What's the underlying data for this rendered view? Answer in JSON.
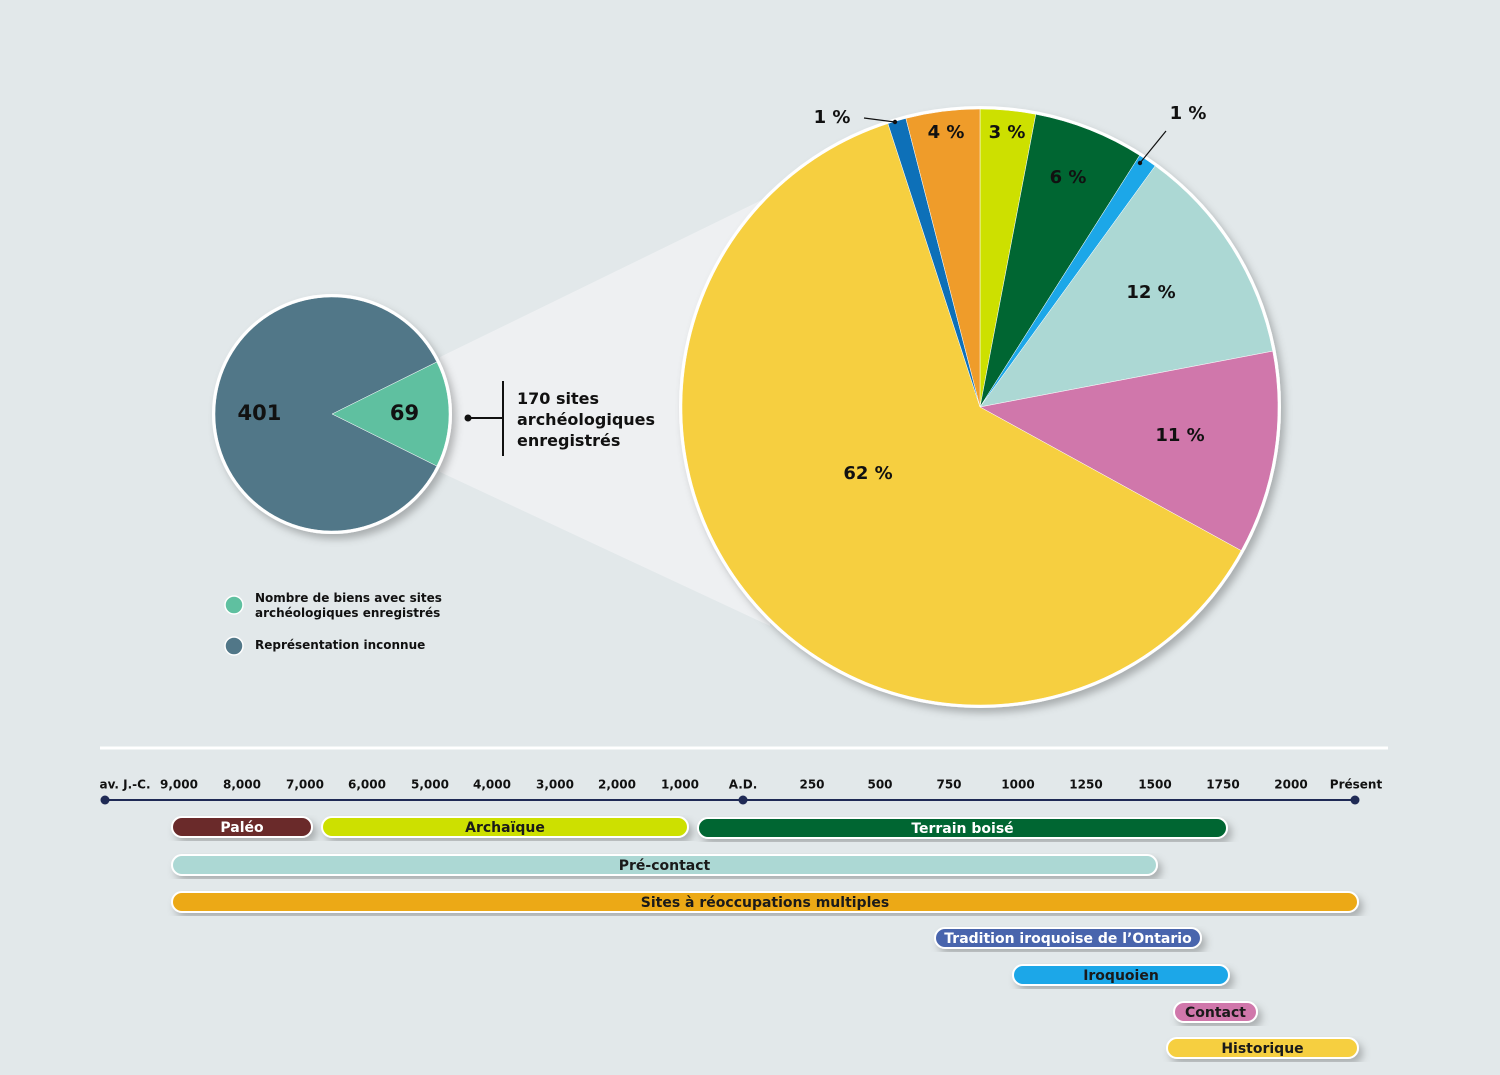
{
  "chart_data": [
    {
      "type": "pie",
      "categories": [
        "Nombre de biens avec sites archéologiques enregistrés",
        "Représentation inconnue"
      ],
      "values": [
        69,
        401
      ],
      "colors": [
        "#5fc0a0",
        "#517788"
      ],
      "annotation": "170 sites archéologiques enregistrés"
    },
    {
      "type": "pie",
      "values": [
        3,
        6,
        1,
        12,
        11,
        62,
        1,
        4
      ],
      "value_labels": [
        "3 %",
        "6 %",
        "1 %",
        "12 %",
        "11 %",
        "62 %",
        "1 %",
        "4 %"
      ],
      "colors": [
        "#cde000",
        "#006633",
        "#1aa7e8",
        "#acd8d4",
        "#d077ab",
        "#f6cf41",
        "#0e6fb8",
        "#ef9c2a"
      ]
    }
  ],
  "timeline": {
    "ticks": [
      "av. J.-C.",
      "9,000",
      "8,000",
      "7,000",
      "6,000",
      "5,000",
      "4,000",
      "3,000",
      "2,000",
      "1,000",
      "A.D.",
      "250",
      "500",
      "750",
      "1000",
      "1250",
      "1500",
      "1750",
      "2000",
      "Présent"
    ],
    "bars": [
      {
        "label": "Paléo",
        "color": "#6b2a2a"
      },
      {
        "label": "Archaïque",
        "color": "#cde000"
      },
      {
        "label": "Terrain boisé",
        "color": "#006633"
      },
      {
        "label": "Pré-contact",
        "color": "#acd8d4"
      },
      {
        "label": "Sites à réoccupations multiples",
        "color": "#eca912"
      },
      {
        "label": "Tradition iroquoise de l’Ontario",
        "color": "#4a65ad"
      },
      {
        "label": "Iroquoien",
        "color": "#1aa7e8"
      },
      {
        "label": "Contact",
        "color": "#d077ab"
      },
      {
        "label": "Historique",
        "color": "#f6cf41"
      }
    ]
  }
}
